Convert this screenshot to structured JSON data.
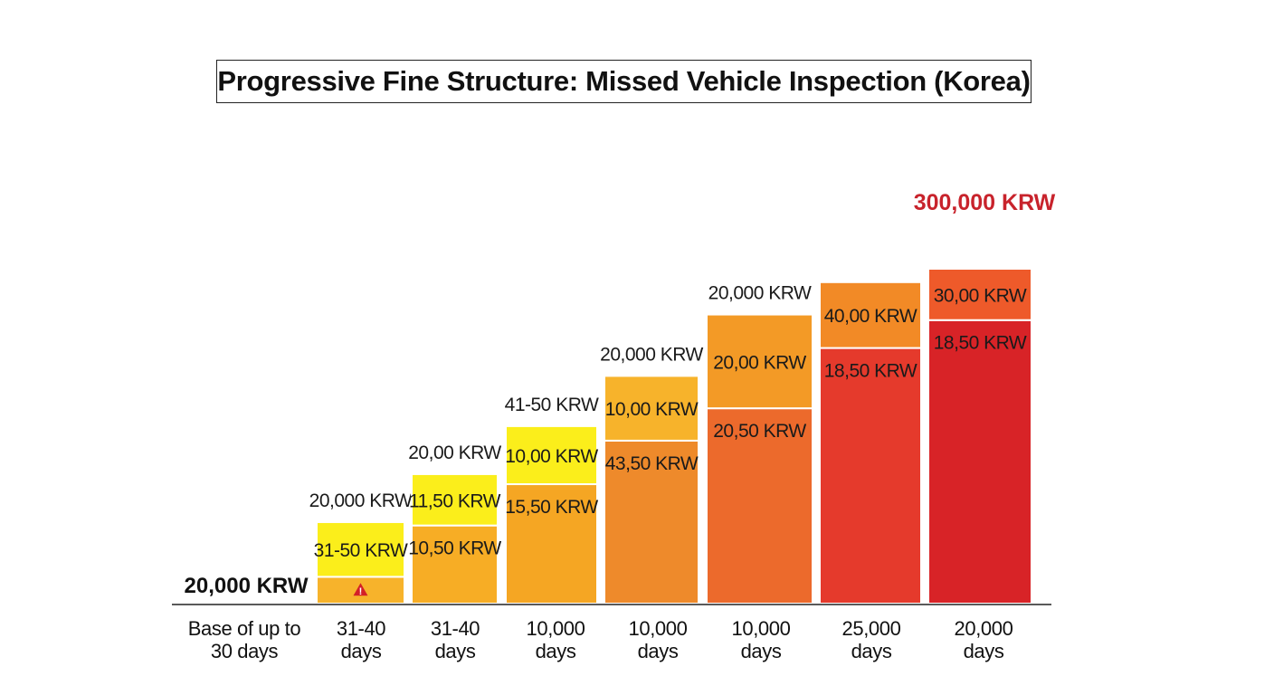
{
  "chart_data": {
    "type": "bar",
    "title": "Progressive Fine Structure: Missed Vehicle Inspection (Korea)",
    "stacked": true,
    "ylim": [
      0,
      300000
    ],
    "grid": false,
    "categories": [
      [
        "Base of up to",
        "30 days"
      ],
      [
        "31-40",
        "days"
      ],
      [
        "31-40",
        "days"
      ],
      [
        "10,000",
        "days"
      ],
      [
        "10,000",
        "days"
      ],
      [
        "10,000",
        "days"
      ],
      [
        "25,000",
        "days"
      ],
      [
        "20,000",
        "days"
      ]
    ],
    "base_bar_label": "20,000 KRW",
    "max_label": "300,000 KRW",
    "bars": [
      {
        "total": 0,
        "top_label": "",
        "segments": []
      },
      {
        "total": 73,
        "top_label": "20,000 KRW",
        "segments": [
          {
            "value": 24,
            "label": "",
            "color": "#f7b32b",
            "icon": "warning-icon"
          },
          {
            "value": 49,
            "label": "31-50 KRW",
            "color": "#fbee1b"
          }
        ]
      },
      {
        "total": 116,
        "top_label": "20,00 KRW",
        "segments": [
          {
            "value": 70,
            "label": "10,50 KRW",
            "color": "#f7ad25"
          },
          {
            "value": 46,
            "label": "11,50 KRW",
            "color": "#fbee1b"
          }
        ]
      },
      {
        "total": 159,
        "top_label": "41-50 KRW",
        "segments": [
          {
            "value": 107,
            "label": "15,50 KRW",
            "color": "#f5a623"
          },
          {
            "value": 52,
            "label": "10,00 KRW",
            "color": "#fbee1b"
          }
        ]
      },
      {
        "total": 204,
        "top_label": "20,000 KRW",
        "segments": [
          {
            "value": 146,
            "label": "43,50 KRW",
            "color": "#ee8a2b"
          },
          {
            "value": 58,
            "label": "10,00 KRW",
            "color": "#f7b32b"
          }
        ]
      },
      {
        "total": 259,
        "top_label": "20,000 KRW",
        "segments": [
          {
            "value": 175,
            "label": "20,50 KRW",
            "color": "#ec6a2c"
          },
          {
            "value": 84,
            "label": "20,00 KRW",
            "color": "#f39a26"
          }
        ]
      },
      {
        "total": 288,
        "top_label": "",
        "segments": [
          {
            "value": 229,
            "label": "18,50 KRW",
            "color": "#e53a2c"
          },
          {
            "value": 59,
            "label": "40,00 KRW",
            "color": "#f28a26"
          }
        ]
      },
      {
        "total": 300,
        "top_label": "",
        "segments": [
          {
            "value": 254,
            "label": "18,50 KRW",
            "color": "#d82327"
          },
          {
            "value": 46,
            "label": "30,00 KRW",
            "color": "#ee5a2a"
          }
        ]
      }
    ]
  }
}
